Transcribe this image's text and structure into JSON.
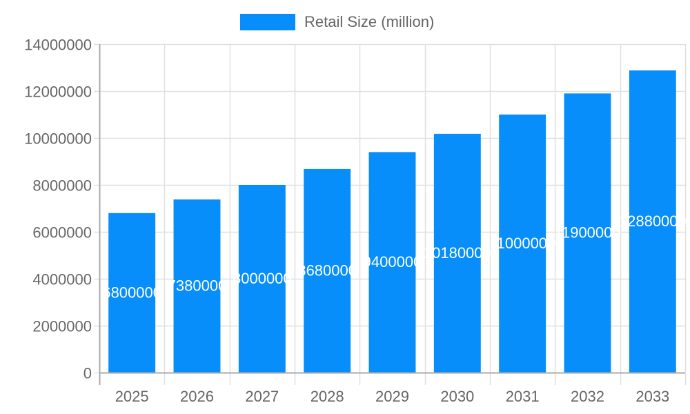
{
  "legend": {
    "label": "Retail Size (million)",
    "color": "#078EFB"
  },
  "chart_data": {
    "type": "bar",
    "title": "",
    "xlabel": "",
    "ylabel": "",
    "categories": [
      "2025",
      "2026",
      "2027",
      "2028",
      "2029",
      "2030",
      "2031",
      "2032",
      "2033"
    ],
    "series": [
      {
        "name": "Retail Size (million)",
        "color": "#078EFB",
        "values": [
          6800000,
          7380000,
          8000000,
          8680000,
          9400000,
          10180000,
          11000000,
          11900000,
          12880000
        ]
      }
    ],
    "ylim": [
      0,
      14000000
    ],
    "yticks": [
      0,
      2000000,
      4000000,
      6000000,
      8000000,
      10000000,
      12000000,
      14000000
    ],
    "grid": true,
    "legend_position": "top",
    "data_labels": true
  }
}
